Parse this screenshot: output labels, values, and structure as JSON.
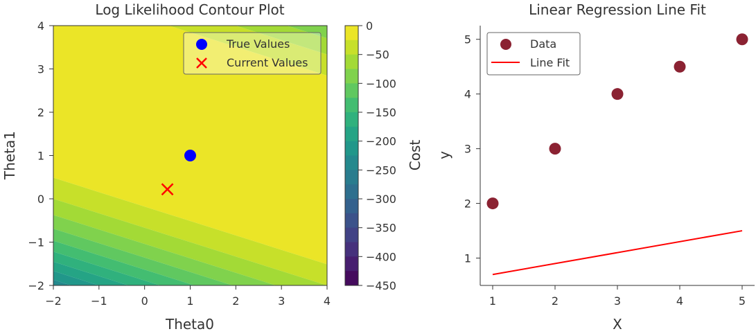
{
  "chart_data": [
    {
      "type": "contour",
      "title": "Log Likelihood Contour Plot",
      "xlabel": "Theta0",
      "ylabel": "Theta1",
      "xlim": [
        -2,
        4
      ],
      "ylim": [
        -2,
        4
      ],
      "xticks": [
        "−2",
        "−1",
        "0",
        "1",
        "2",
        "3",
        "4"
      ],
      "yticks": [
        "−2",
        "−1",
        "0",
        "1",
        "2",
        "3",
        "4"
      ],
      "colormap": "viridis",
      "colorbar": {
        "label": "Cost",
        "range": [
          -450,
          0
        ],
        "levels_step": 25,
        "ticks": [
          "0",
          "−50",
          "−100",
          "−150",
          "−200",
          "−250",
          "−300",
          "−350",
          "−400",
          "−450"
        ],
        "tick_values": [
          0,
          -50,
          -100,
          -150,
          -200,
          -250,
          -300,
          -350,
          -400,
          -450
        ]
      },
      "legend": {
        "position": "top-right",
        "entries": [
          {
            "label": "True Values",
            "marker": "circle",
            "color": "#0000ff"
          },
          {
            "label": "Current Values",
            "marker": "x",
            "color": "#ff0000"
          }
        ]
      },
      "points": [
        {
          "series": "True Values",
          "x": 1.0,
          "y": 1.0
        },
        {
          "series": "Current Values",
          "x": 0.5,
          "y": 0.22
        }
      ]
    },
    {
      "type": "scatter",
      "title": "Linear Regression Line Fit",
      "xlabel": "X",
      "ylabel": "y",
      "xlim": [
        0.8,
        5.2
      ],
      "ylim": [
        0.5,
        5.25
      ],
      "xticks": [
        "1",
        "2",
        "3",
        "4",
        "5"
      ],
      "yticks": [
        "1",
        "2",
        "3",
        "4",
        "5"
      ],
      "legend": {
        "position": "top-left",
        "entries": [
          {
            "label": "Data",
            "marker": "circle",
            "color": "#8b2232"
          },
          {
            "label": "Line Fit",
            "marker": "line",
            "color": "#ff0000"
          }
        ]
      },
      "series": [
        {
          "name": "Data",
          "kind": "scatter",
          "x": [
            1,
            2,
            3,
            4,
            5
          ],
          "y": [
            2,
            3,
            4,
            4.5,
            5
          ]
        },
        {
          "name": "Line Fit",
          "kind": "line",
          "x": [
            1,
            5
          ],
          "y": [
            0.7,
            1.5
          ]
        }
      ]
    }
  ]
}
